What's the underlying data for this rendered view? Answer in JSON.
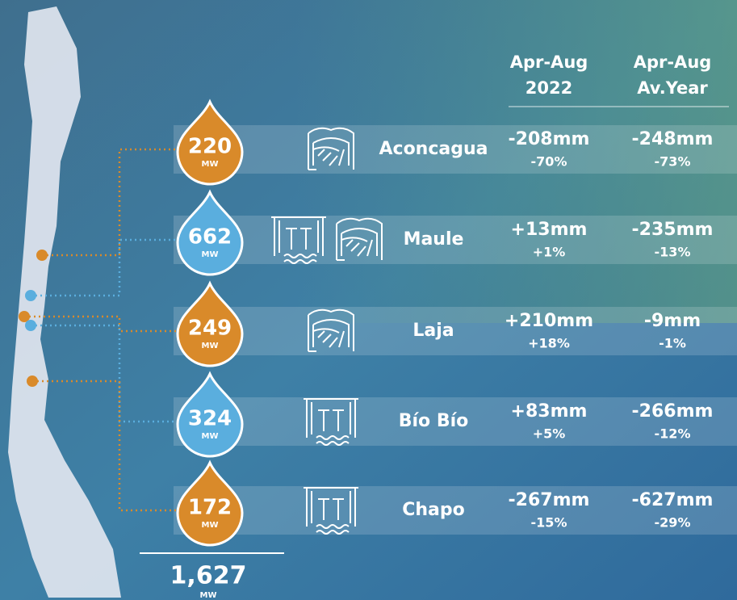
{
  "header": {
    "col1": [
      "Apr-Aug",
      "2022"
    ],
    "col2": [
      "Apr-Aug",
      "Av.Year"
    ]
  },
  "rows": [
    {
      "name": "Aconcagua",
      "capacity": "220",
      "unit": "MW",
      "color": "#d98a2a",
      "col1_mm": "-208mm",
      "col1_pct": "-70%",
      "col2_mm": "-248mm",
      "col2_pct": "-73%"
    },
    {
      "name": "Maule",
      "capacity": "662",
      "unit": "MW",
      "color": "#5aaede",
      "col1_mm": "+13mm",
      "col1_pct": "+1%",
      "col2_mm": "-235mm",
      "col2_pct": "-13%"
    },
    {
      "name": "Laja",
      "capacity": "249",
      "unit": "MW",
      "color": "#d98a2a",
      "col1_mm": "+210mm",
      "col1_pct": "+18%",
      "col2_mm": "-9mm",
      "col2_pct": "-1%"
    },
    {
      "name": "Bío Bío",
      "capacity": "324",
      "unit": "MW",
      "color": "#5aaede",
      "col1_mm": "+83mm",
      "col1_pct": "+5%",
      "col2_mm": "-266mm",
      "col2_pct": "-12%"
    },
    {
      "name": "Chapo",
      "capacity": "172",
      "unit": "MW",
      "color": "#d98a2a",
      "col1_mm": "-267mm",
      "col1_pct": "-15%",
      "col2_mm": "-627mm",
      "col2_pct": "-29%"
    }
  ],
  "total": {
    "value": "1,627",
    "unit": "MW"
  }
}
